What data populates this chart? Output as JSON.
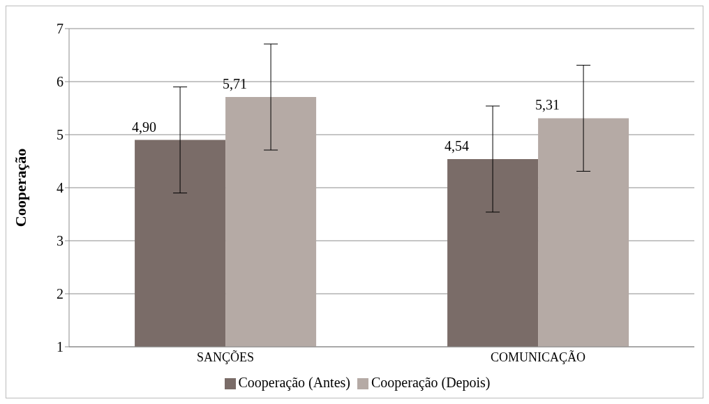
{
  "chart_data": {
    "type": "bar",
    "ylabel": "Cooperação",
    "categories": [
      "SANÇÕES",
      "COMUNICAÇÃO"
    ],
    "series": [
      {
        "name": "Cooperação (Antes)",
        "color": "#7a6c68",
        "values": [
          4.9,
          4.54
        ],
        "errors": [
          1,
          1
        ],
        "value_labels": [
          "4,90",
          "4,54"
        ]
      },
      {
        "name": "Cooperação (Depois)",
        "color": "#b5aaa5",
        "values": [
          5.71,
          5.31
        ],
        "errors": [
          1,
          1
        ],
        "value_labels": [
          "5,71",
          "5,31"
        ]
      }
    ],
    "ylim": [
      1,
      7
    ],
    "yticks": [
      1,
      2,
      3,
      4,
      5,
      6,
      7
    ],
    "grid": "y",
    "legend": "bottom"
  }
}
